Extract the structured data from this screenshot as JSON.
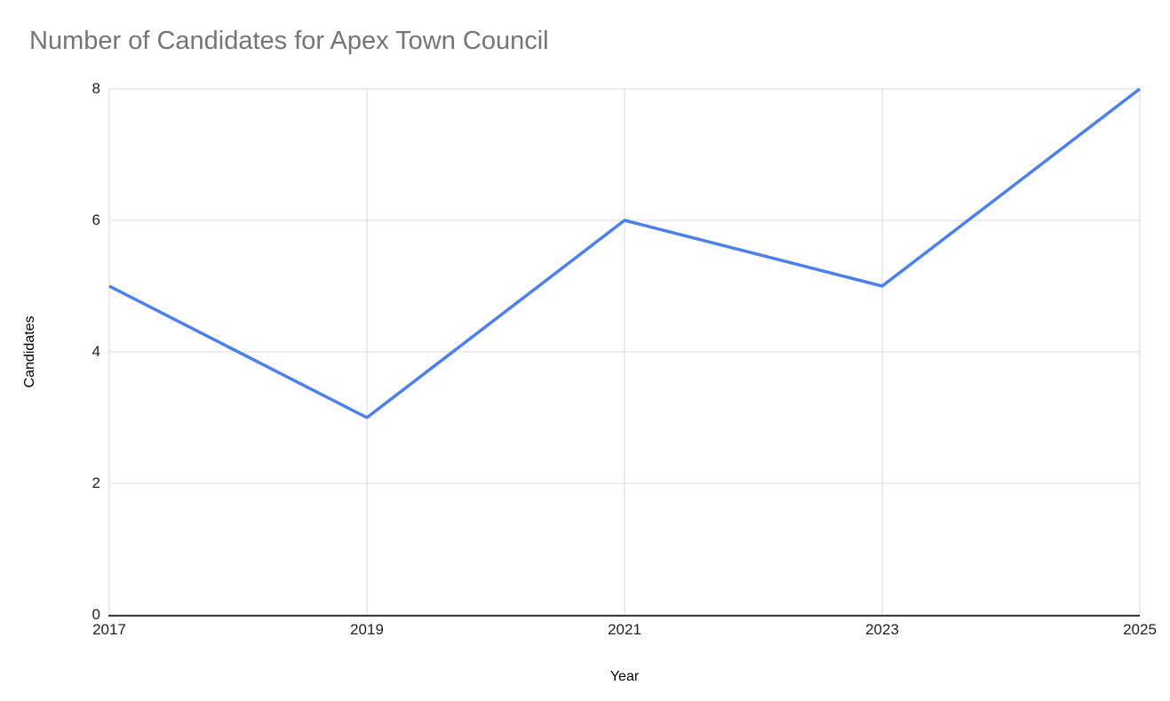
{
  "chart_data": {
    "type": "line",
    "title": "Number of Candidates for Apex Town Council",
    "xlabel": "Year",
    "ylabel": "Candidates",
    "categories": [
      2017,
      2019,
      2021,
      2023,
      2025
    ],
    "series": [
      {
        "name": "Candidates",
        "values": [
          5,
          3,
          6,
          5,
          8
        ]
      }
    ],
    "x_ticks": [
      2017,
      2019,
      2021,
      2023,
      2025
    ],
    "y_ticks": [
      0,
      2,
      4,
      6,
      8
    ],
    "xlim": [
      2017,
      2025
    ],
    "ylim": [
      0,
      8
    ],
    "grid": true,
    "legend_position": "none",
    "colors": {
      "series_line": "#4e80ec",
      "gridline": "#d9d9d9",
      "axis_line": "#383838",
      "title_text": "#757575",
      "tick_text": "#202124",
      "axis_title_text": "#000000",
      "background": "#ffffff"
    }
  }
}
